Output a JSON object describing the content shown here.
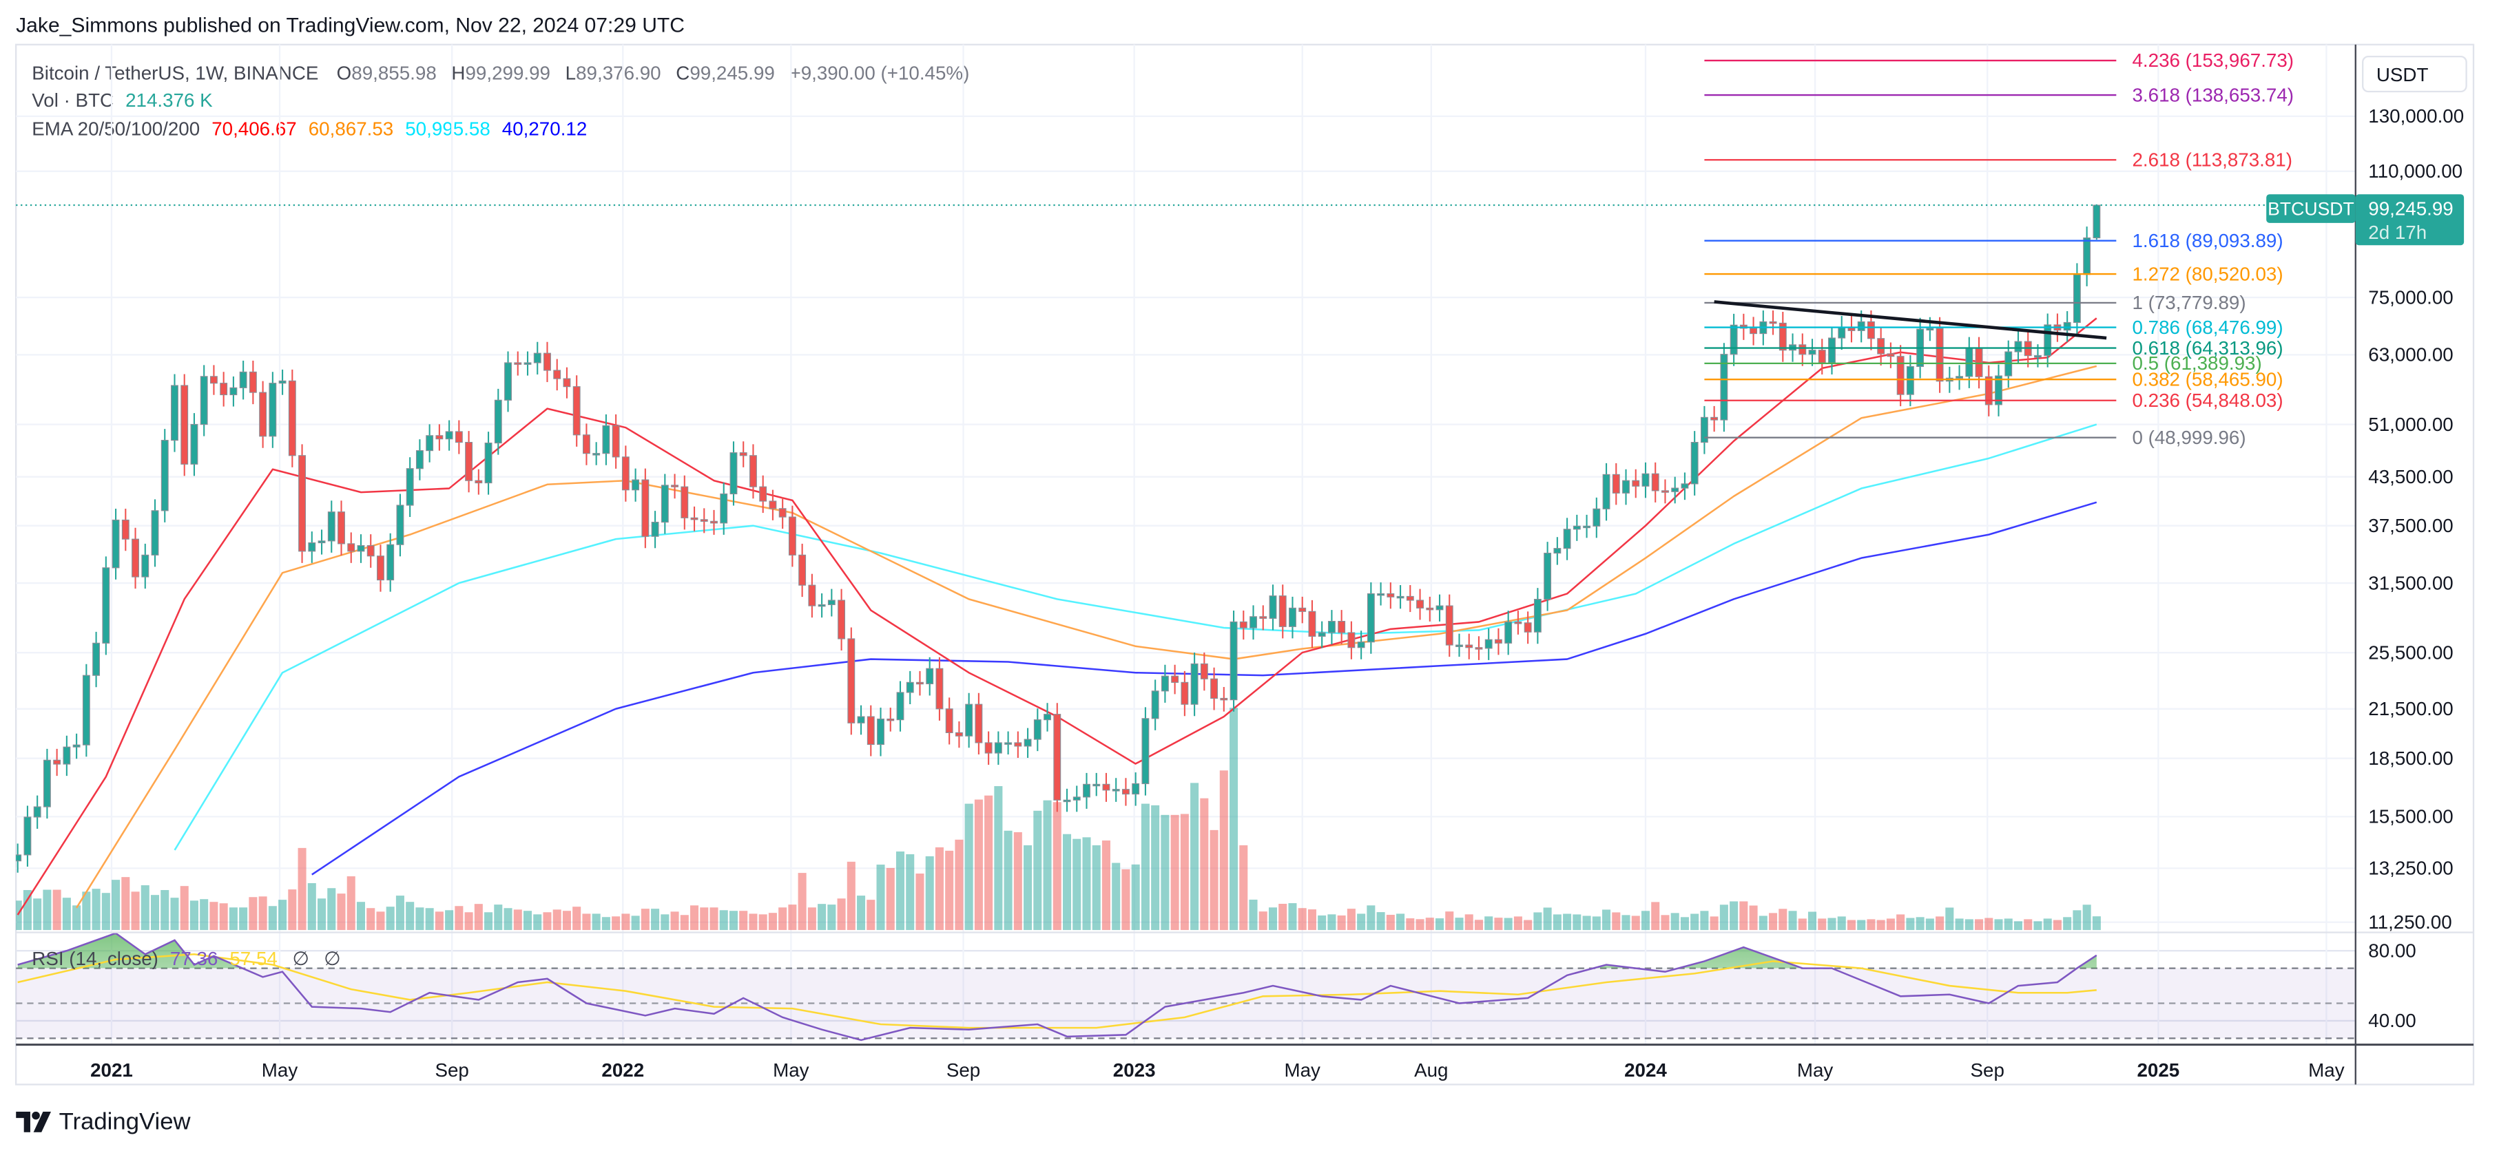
{
  "header": {
    "title": "Jake_Simmons published on TradingView.com, Nov 22, 2024 07:29 UTC",
    "symbol_line": "Bitcoin / TetherUS, 1W, BINANCE",
    "ohlc": {
      "o_label": "O",
      "o": "89,855.98",
      "h_label": "H",
      "h": "99,299.99",
      "l_label": "L",
      "l": "89,376.90",
      "c_label": "C",
      "c": "99,245.99",
      "change": "+9,390.00 (+10.45%)"
    },
    "volume_label": "Vol · BTC",
    "volume_value": "214.376 K",
    "ema_label": "EMA 20/50/100/200",
    "ema_values": [
      "70,406.67",
      "60,867.53",
      "50,995.58",
      "40,270.12"
    ]
  },
  "price_axis": {
    "currency": "USDT",
    "ticks": [
      130000,
      110000,
      75000,
      63000,
      51000,
      43500,
      37500,
      31500,
      25500,
      21500,
      18500,
      15500,
      13250,
      11250
    ],
    "tick_labels": [
      "130,000.00",
      "110,000.00",
      "75,000.00",
      "63,000.00",
      "51,000.00",
      "43,500.00",
      "37,500.00",
      "31,500.00",
      "25,500.00",
      "21,500.00",
      "18,500.00",
      "15,500.00",
      "13,250.00",
      "11,250.00"
    ],
    "last_price_badge": {
      "symbol": "BTCUSDT",
      "price": "99,245.99",
      "countdown": "2d 17h",
      "color": "#26a69a"
    }
  },
  "time_axis": {
    "ticks": [
      [
        "2021-01-01",
        "2021"
      ],
      [
        "2021-05-01",
        "May"
      ],
      [
        "2021-09-01",
        "Sep"
      ],
      [
        "2022-01-01",
        "2022"
      ],
      [
        "2022-05-01",
        "May"
      ],
      [
        "2022-09-01",
        "Sep"
      ],
      [
        "2023-01-01",
        "2023"
      ],
      [
        "2023-05-01",
        "May"
      ],
      [
        "2023-08-01",
        "Aug"
      ],
      [
        "2024-01-01",
        "2024"
      ],
      [
        "2024-05-01",
        "May"
      ],
      [
        "2024-09-01",
        "Sep"
      ],
      [
        "2025-01-01",
        "2025"
      ],
      [
        "2025-05-01",
        "May"
      ]
    ]
  },
  "rsi_panel": {
    "label": "RSI (14, close)",
    "value": "77.36",
    "ma_value": "57.54",
    "extra": [
      "∅",
      "∅"
    ],
    "axis_labels": [
      "80.00",
      "40.00"
    ]
  },
  "footer": {
    "brand": "TradingView"
  },
  "chart_data": {
    "type": "candlestick",
    "interval": "1W",
    "start": "2020-10-26",
    "y_scale": "log",
    "ylim": [
      11250,
      160000
    ],
    "grid": true,
    "colors": {
      "up": "#26a69a",
      "down": "#ef5350",
      "ema20": "#ff0000",
      "ema50": "#ff9800",
      "ema100": "#00e5ff",
      "ema200": "#2b2bff",
      "rsi": "#7e57c2",
      "rsi_ma": "#fdd835"
    },
    "first_open": 13550,
    "close": [
      13800,
      15480,
      15970,
      18400,
      18180,
      19150,
      19270,
      23800,
      26250,
      33000,
      38150,
      36000,
      32100,
      34300,
      39250,
      48600,
      57400,
      45200,
      51000,
      59000,
      57800,
      55800,
      57000,
      59800,
      56200,
      49200,
      57800,
      58200,
      46400,
      34700,
      35600,
      35800,
      39100,
      35500,
      34700,
      35300,
      34200,
      31800,
      35400,
      39900,
      44600,
      47100,
      49300,
      48800,
      49900,
      48300,
      43000,
      42700,
      48200,
      54900,
      61500,
      61300,
      61500,
      63300,
      60100,
      58600,
      57200,
      49400,
      46700,
      46700,
      50800,
      46200,
      41800,
      43100,
      36300,
      37900,
      42400,
      42200,
      38400,
      38200,
      38000,
      37800,
      41300,
      46800,
      46400,
      42200,
      40400,
      39500,
      38500,
      34300,
      31300,
      29400,
      29500,
      29900,
      26600,
      20600,
      21000,
      19300,
      20850,
      20800,
      22600,
      23300,
      23200,
      24300,
      21500,
      20000,
      19800,
      21800,
      19400,
      18800,
      19400,
      19400,
      19200,
      19600,
      20800,
      21150,
      16300,
      16300,
      16450,
      17100,
      17100,
      16800,
      16840,
      16600,
      17130,
      20880,
      22700,
      23750,
      23300,
      21800,
      24650,
      23550,
      22200,
      22100,
      28000,
      27500,
      28450,
      28300,
      30300,
      27600,
      29200,
      28900,
      26800,
      27100,
      28050,
      27100,
      25900,
      26340,
      30500,
      30500,
      30200,
      30250,
      29900,
      29200,
      29050,
      29400,
      26100,
      26100,
      25900,
      25840,
      26530,
      26250,
      27990,
      27920,
      27150,
      29990,
      34500,
      35000,
      37100,
      37450,
      37450,
      39460,
      43800,
      41400,
      43000,
      42280,
      43900,
      41700,
      41580,
      42030,
      42580,
      48300,
      52100,
      51700,
      63100,
      68950,
      68300,
      67200,
      69650,
      69360,
      63900,
      64950,
      63100,
      63900,
      61500,
      66300,
      68500,
      67800,
      69650,
      66200,
      63200,
      62700,
      55850,
      60800,
      68100,
      68250,
      58160,
      58700,
      59000,
      64250,
      58950,
      54150,
      59100,
      63580,
      65600,
      62850,
      62850,
      69000,
      67900,
      69500,
      80400,
      89856,
      99245.99
    ],
    "last_candle": {
      "open": 89855.98,
      "high": 99299.99,
      "low": 89376.9,
      "close": 99245.99
    },
    "volume_k": [
      460,
      625,
      493,
      630,
      630,
      505,
      385,
      600,
      645,
      580,
      785,
      828,
      600,
      700,
      548,
      625,
      505,
      688,
      460,
      483,
      440,
      418,
      353,
      353,
      515,
      525,
      375,
      473,
      635,
      1283,
      733,
      493,
      655,
      570,
      840,
      440,
      343,
      288,
      365,
      538,
      440,
      353,
      343,
      288,
      310,
      375,
      278,
      408,
      278,
      398,
      343,
      320,
      300,
      245,
      278,
      320,
      300,
      365,
      255,
      255,
      203,
      213,
      255,
      223,
      333,
      333,
      245,
      288,
      235,
      385,
      353,
      353,
      310,
      300,
      300,
      255,
      245,
      268,
      353,
      398,
      893,
      353,
      408,
      398,
      493,
      1068,
      538,
      473,
      1023,
      970,
      1228,
      1185,
      883,
      1153,
      1293,
      1240,
      1413,
      1975,
      2040,
      2103,
      2250,
      1553,
      1530,
      1325,
      1865,
      2028,
      2000,
      1500,
      1425,
      1450,
      1325,
      1400,
      1050,
      950,
      1025,
      1975,
      1950,
      1800,
      1800,
      1815,
      2300,
      2060,
      1563,
      2495,
      3475,
      1325,
      475,
      290,
      353,
      410,
      420,
      343,
      323,
      228,
      245,
      228,
      333,
      255,
      385,
      280,
      238,
      255,
      183,
      170,
      193,
      183,
      290,
      193,
      245,
      160,
      213,
      193,
      189,
      212,
      157,
      276,
      351,
      244,
      254,
      244,
      222,
      212,
      319,
      276,
      234,
      222,
      299,
      438,
      234,
      266,
      202,
      254,
      299,
      212,
      396,
      448,
      448,
      383,
      222,
      266,
      331,
      299,
      179,
      286,
      179,
      189,
      212,
      157,
      157,
      169,
      157,
      179,
      244,
      189,
      202,
      179,
      212,
      351,
      179,
      169,
      169,
      189,
      169,
      179,
      137,
      169,
      137,
      179,
      157,
      202,
      309,
      396,
      214.376
    ],
    "ema20": [
      [
        "2020-10-26",
        11500
      ],
      [
        "2020-12-28",
        17500
      ],
      [
        "2021-02-22",
        30000
      ],
      [
        "2021-04-26",
        44500
      ],
      [
        "2021-06-28",
        41500
      ],
      [
        "2021-08-30",
        42000
      ],
      [
        "2021-11-08",
        53500
      ],
      [
        "2022-01-03",
        50500
      ],
      [
        "2022-03-07",
        43000
      ],
      [
        "2022-05-02",
        40500
      ],
      [
        "2022-06-27",
        29000
      ],
      [
        "2022-09-05",
        24000
      ],
      [
        "2022-11-07",
        21000
      ],
      [
        "2023-01-02",
        18200
      ],
      [
        "2023-03-06",
        21000
      ],
      [
        "2023-05-01",
        25500
      ],
      [
        "2023-07-03",
        27400
      ],
      [
        "2023-09-04",
        28000
      ],
      [
        "2023-11-06",
        30500
      ],
      [
        "2024-01-01",
        37500
      ],
      [
        "2024-03-04",
        48500
      ],
      [
        "2024-05-06",
        60500
      ],
      [
        "2024-07-01",
        63500
      ],
      [
        "2024-09-02",
        61500
      ],
      [
        "2024-10-14",
        62500
      ],
      [
        "2024-11-18",
        70406.67
      ]
    ],
    "ema50": [
      [
        "2020-12-07",
        11750
      ],
      [
        "2021-02-15",
        19000
      ],
      [
        "2021-05-03",
        32500
      ],
      [
        "2021-08-02",
        36500
      ],
      [
        "2021-11-08",
        42500
      ],
      [
        "2022-01-03",
        43000
      ],
      [
        "2022-05-02",
        39000
      ],
      [
        "2022-09-05",
        30000
      ],
      [
        "2023-01-02",
        26000
      ],
      [
        "2023-03-13",
        25000
      ],
      [
        "2023-05-01",
        25800
      ],
      [
        "2023-08-07",
        27000
      ],
      [
        "2023-11-06",
        29000
      ],
      [
        "2024-01-01",
        34000
      ],
      [
        "2024-03-04",
        41000
      ],
      [
        "2024-06-03",
        52000
      ],
      [
        "2024-09-02",
        56000
      ],
      [
        "2024-11-18",
        60867.53
      ]
    ],
    "ema100": [
      [
        "2021-02-15",
        14000
      ],
      [
        "2021-05-03",
        24000
      ],
      [
        "2021-09-06",
        31500
      ],
      [
        "2021-12-27",
        36000
      ],
      [
        "2022-04-04",
        37500
      ],
      [
        "2022-07-04",
        34500
      ],
      [
        "2022-11-07",
        30000
      ],
      [
        "2023-03-06",
        27500
      ],
      [
        "2023-06-05",
        27000
      ],
      [
        "2023-09-04",
        27300
      ],
      [
        "2023-12-25",
        30500
      ],
      [
        "2024-03-04",
        35500
      ],
      [
        "2024-06-03",
        42000
      ],
      [
        "2024-09-02",
        46000
      ],
      [
        "2024-11-18",
        50995.58
      ]
    ],
    "ema200": [
      [
        "2021-05-24",
        13000
      ],
      [
        "2021-09-06",
        17500
      ],
      [
        "2021-12-27",
        21500
      ],
      [
        "2022-04-04",
        24000
      ],
      [
        "2022-06-27",
        25000
      ],
      [
        "2022-10-03",
        24800
      ],
      [
        "2023-01-02",
        24000
      ],
      [
        "2023-04-03",
        23800
      ],
      [
        "2023-08-07",
        24500
      ],
      [
        "2023-11-06",
        25000
      ],
      [
        "2024-01-01",
        27000
      ],
      [
        "2024-03-04",
        30000
      ],
      [
        "2024-06-03",
        34000
      ],
      [
        "2024-09-02",
        36500
      ],
      [
        "2024-11-18",
        40270.12
      ]
    ],
    "fib_levels": [
      {
        "level": "4.236",
        "price": "153,967.73",
        "value": 153967.73,
        "color": "#e91e63"
      },
      {
        "level": "3.618",
        "price": "138,653.74",
        "value": 138653.74,
        "color": "#9c27b0"
      },
      {
        "level": "2.618",
        "price": "113,873.81",
        "value": 113873.81,
        "color": "#f23645"
      },
      {
        "level": "1.618",
        "price": "89,093.89",
        "value": 89093.89,
        "color": "#2962ff"
      },
      {
        "level": "1.272",
        "price": "80,520.03",
        "value": 80520.03,
        "color": "#ff9800"
      },
      {
        "level": "1",
        "price": "73,779.89",
        "value": 73779.89,
        "color": "#787b86"
      },
      {
        "level": "0.786",
        "price": "68,476.99",
        "value": 68476.99,
        "color": "#00bcd4"
      },
      {
        "level": "0.618",
        "price": "64,313.96",
        "value": 64313.96,
        "color": "#089981"
      },
      {
        "level": "0.5",
        "price": "61,389.93",
        "value": 61389.93,
        "color": "#4caf50"
      },
      {
        "level": "0.382",
        "price": "58,465.90",
        "value": 58465.9,
        "color": "#ff9800"
      },
      {
        "level": "0.236",
        "price": "54,848.03",
        "value": 54848.03,
        "color": "#f23645"
      },
      {
        "level": "0",
        "price": "48,999.96",
        "value": 48999.96,
        "color": "#787b86"
      }
    ],
    "fib_date_range": [
      "2024-02-12",
      "2024-12-02"
    ],
    "trendline": [
      [
        "2024-02-19",
        74000
      ],
      [
        "2024-11-25",
        66300
      ]
    ],
    "rsi": [
      [
        "2020-10-26",
        72
      ],
      [
        "2020-11-30",
        80
      ],
      [
        "2021-01-04",
        90
      ],
      [
        "2021-01-25",
        78
      ],
      [
        "2021-02-15",
        86
      ],
      [
        "2021-03-01",
        72
      ],
      [
        "2021-03-15",
        77
      ],
      [
        "2021-04-19",
        65
      ],
      [
        "2021-05-03",
        68
      ],
      [
        "2021-05-24",
        48
      ],
      [
        "2021-06-28",
        47
      ],
      [
        "2021-07-19",
        45
      ],
      [
        "2021-08-16",
        56
      ],
      [
        "2021-09-20",
        52
      ],
      [
        "2021-10-18",
        62
      ],
      [
        "2021-11-08",
        64
      ],
      [
        "2021-12-06",
        50
      ],
      [
        "2022-01-17",
        43
      ],
      [
        "2022-02-07",
        47
      ],
      [
        "2022-03-07",
        44
      ],
      [
        "2022-03-28",
        53
      ],
      [
        "2022-04-25",
        42
      ],
      [
        "2022-05-23",
        35
      ],
      [
        "2022-06-20",
        29
      ],
      [
        "2022-07-25",
        36
      ],
      [
        "2022-09-05",
        35
      ],
      [
        "2022-10-24",
        38
      ],
      [
        "2022-11-14",
        31
      ],
      [
        "2022-12-26",
        32
      ],
      [
        "2023-01-23",
        48
      ],
      [
        "2023-03-20",
        56
      ],
      [
        "2023-04-10",
        60
      ],
      [
        "2023-05-15",
        54
      ],
      [
        "2023-06-12",
        52
      ],
      [
        "2023-07-03",
        60
      ],
      [
        "2023-08-21",
        50
      ],
      [
        "2023-10-09",
        53
      ],
      [
        "2023-11-06",
        66
      ],
      [
        "2023-12-04",
        72
      ],
      [
        "2024-01-15",
        68
      ],
      [
        "2024-02-12",
        74
      ],
      [
        "2024-03-11",
        82
      ],
      [
        "2024-04-22",
        70
      ],
      [
        "2024-05-13",
        70
      ],
      [
        "2024-07-01",
        54
      ],
      [
        "2024-08-05",
        55
      ],
      [
        "2024-09-02",
        50
      ],
      [
        "2024-09-23",
        60
      ],
      [
        "2024-10-21",
        62
      ],
      [
        "2024-11-04",
        70
      ],
      [
        "2024-11-18",
        77.36
      ]
    ],
    "rsi_ma": [
      [
        "2020-10-26",
        62
      ],
      [
        "2021-01-04",
        75
      ],
      [
        "2021-03-01",
        78
      ],
      [
        "2021-04-26",
        72
      ],
      [
        "2021-06-21",
        58
      ],
      [
        "2021-08-02",
        52
      ],
      [
        "2021-09-13",
        56
      ],
      [
        "2021-11-08",
        62
      ],
      [
        "2022-01-03",
        57
      ],
      [
        "2022-03-07",
        48
      ],
      [
        "2022-05-02",
        47
      ],
      [
        "2022-07-04",
        38
      ],
      [
        "2022-09-05",
        36
      ],
      [
        "2022-12-05",
        36
      ],
      [
        "2023-02-06",
        42
      ],
      [
        "2023-04-03",
        54
      ],
      [
        "2023-06-05",
        55
      ],
      [
        "2023-08-07",
        57
      ],
      [
        "2023-10-02",
        55
      ],
      [
        "2023-12-04",
        62
      ],
      [
        "2024-02-05",
        67
      ],
      [
        "2024-04-01",
        74
      ],
      [
        "2024-06-03",
        70
      ],
      [
        "2024-08-05",
        60
      ],
      [
        "2024-09-23",
        56
      ],
      [
        "2024-10-28",
        56
      ],
      [
        "2024-11-18",
        57.54
      ]
    ],
    "rsi_levels": [
      70,
      50,
      30
    ]
  }
}
